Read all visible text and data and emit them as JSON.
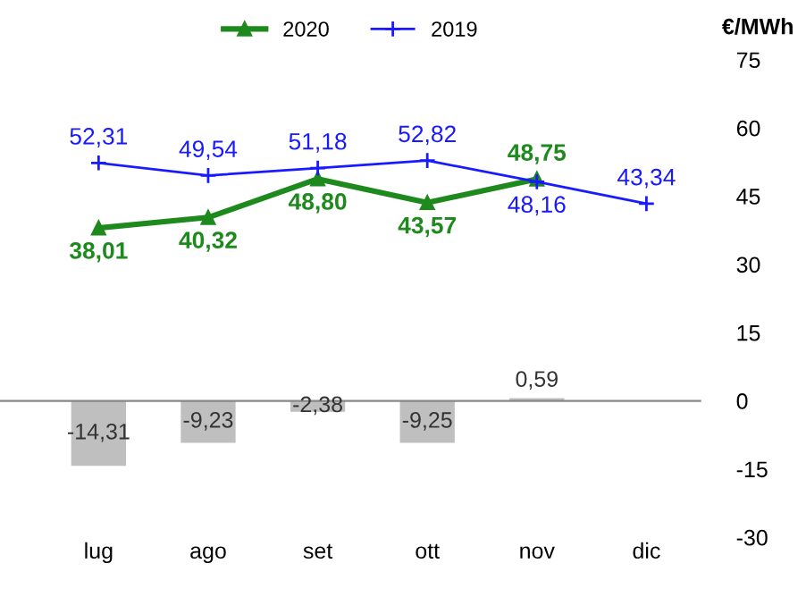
{
  "chart_data": {
    "type": "line",
    "ylabel": "€/MWh",
    "categories": [
      "lug",
      "ago",
      "set",
      "ott",
      "nov",
      "dic"
    ],
    "series": [
      {
        "name": "2020",
        "color": "#1e8a1e",
        "marker": "triangle",
        "values": [
          38.01,
          40.32,
          48.8,
          43.57,
          48.75,
          null
        ],
        "value_labels": [
          "38,01",
          "40,32",
          "48,80",
          "43,57",
          "48,75",
          null
        ]
      },
      {
        "name": "2019",
        "color": "#1a1aff",
        "marker": "cross",
        "values": [
          52.31,
          49.54,
          51.18,
          52.82,
          48.16,
          43.34
        ],
        "value_labels": [
          "52,31",
          "49,54",
          "51,18",
          "52,82",
          "48,16",
          "43,34"
        ]
      },
      {
        "type": "bar",
        "color": "#bfbfbf",
        "values": [
          -14.31,
          -9.23,
          -2.38,
          -9.25,
          0.59,
          null
        ],
        "value_labels": [
          "-14,31",
          "-9,23",
          "-2,38",
          "-9,25",
          "0,59",
          null
        ]
      }
    ],
    "ylim": [
      -30,
      75
    ],
    "yticks": [
      -30,
      -15,
      0,
      15,
      30,
      45,
      60,
      75
    ],
    "legend": "top"
  }
}
